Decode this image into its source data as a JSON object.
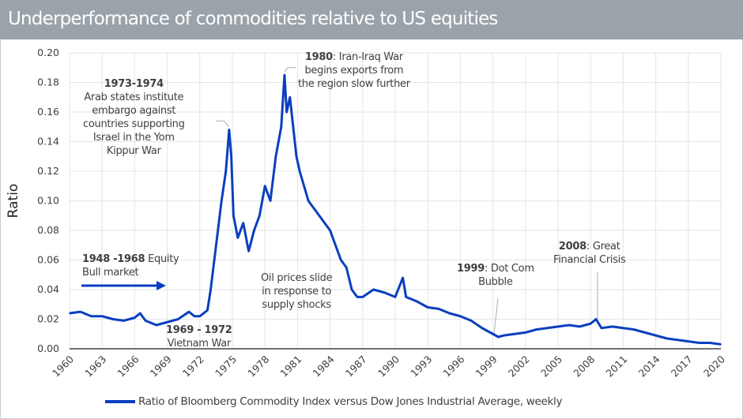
{
  "header": {
    "title": "Underperformance of commodities relative to US equities"
  },
  "chart_data": {
    "type": "line",
    "title": "Underperformance of commodities relative to US equities",
    "xlabel": "",
    "ylabel": "Ratio",
    "xlim": [
      1960,
      2020
    ],
    "ylim": [
      0,
      0.2
    ],
    "x_ticks": [
      "1960",
      "1963",
      "1966",
      "1969",
      "1972",
      "1975",
      "1978",
      "1981",
      "1984",
      "1987",
      "1990",
      "1993",
      "1996",
      "1999",
      "2002",
      "2005",
      "2008",
      "2011",
      "2014",
      "2017",
      "2020"
    ],
    "y_ticks": [
      "0.00",
      "0.02",
      "0.04",
      "0.06",
      "0.08",
      "0.10",
      "0.12",
      "0.14",
      "0.16",
      "0.18",
      "0.20"
    ],
    "grid": true,
    "legend_placement": "bottom",
    "colors": {
      "series": "#0a3fbf",
      "grid": "#e3e5e8",
      "header": "#9aa3aa"
    },
    "series": [
      {
        "name": "Ratio of Bloomberg Commodity Index versus Dow Jones Industrial Average, weekly",
        "x": [
          1960,
          1961,
          1962,
          1963,
          1964,
          1965,
          1966,
          1966.5,
          1967,
          1968,
          1969,
          1970,
          1971,
          1971.5,
          1972,
          1972.7,
          1973,
          1973.5,
          1974,
          1974.4,
          1974.7,
          1974.9,
          1975.1,
          1975.5,
          1976,
          1976.5,
          1977,
          1977.5,
          1978,
          1978.5,
          1979,
          1979.5,
          1979.8,
          1980,
          1980.3,
          1980.6,
          1980.9,
          1981.2,
          1981.6,
          1982,
          1982.5,
          1983,
          1983.5,
          1984,
          1984.5,
          1985,
          1985.5,
          1986,
          1986.5,
          1987,
          1988,
          1989,
          1990,
          1990.7,
          1991,
          1992,
          1993,
          1994,
          1995,
          1996,
          1997,
          1998,
          1999,
          1999.5,
          2000,
          2001,
          2002,
          2003,
          2004,
          2005,
          2006,
          2007,
          2008,
          2008.5,
          2009,
          2010,
          2011,
          2012,
          2013,
          2014,
          2015,
          2016,
          2017,
          2018,
          2019,
          2020
        ],
        "values": [
          0.024,
          0.025,
          0.022,
          0.022,
          0.02,
          0.019,
          0.021,
          0.024,
          0.019,
          0.016,
          0.018,
          0.02,
          0.025,
          0.022,
          0.022,
          0.026,
          0.04,
          0.07,
          0.1,
          0.12,
          0.148,
          0.13,
          0.09,
          0.075,
          0.085,
          0.066,
          0.08,
          0.09,
          0.11,
          0.1,
          0.13,
          0.15,
          0.185,
          0.16,
          0.17,
          0.15,
          0.13,
          0.12,
          0.11,
          0.1,
          0.095,
          0.09,
          0.085,
          0.08,
          0.07,
          0.06,
          0.055,
          0.04,
          0.035,
          0.035,
          0.04,
          0.038,
          0.035,
          0.048,
          0.035,
          0.032,
          0.028,
          0.027,
          0.024,
          0.022,
          0.019,
          0.014,
          0.01,
          0.008,
          0.009,
          0.01,
          0.011,
          0.013,
          0.014,
          0.015,
          0.016,
          0.015,
          0.017,
          0.02,
          0.014,
          0.015,
          0.014,
          0.013,
          0.011,
          0.009,
          0.007,
          0.006,
          0.005,
          0.004,
          0.004,
          0.003
        ]
      }
    ],
    "annotations": [
      {
        "bold": "1973-1974",
        "lines": [
          "Arab states institute",
          "embargo against",
          "countries supporting",
          "Israel in the Yom",
          "Kippur War"
        ]
      },
      {
        "bold": "1980",
        "text": ": Iran-Iraq War",
        "lines": [
          "begins exports from",
          "the region slow further"
        ]
      },
      {
        "bold": "1948 -1968",
        "text": " Equity",
        "lines": [
          "Bull market"
        ]
      },
      {
        "bold": "1969 - 1972",
        "lines": [
          "Vietnam War"
        ]
      },
      {
        "lines": [
          "Oil prices slide",
          "in response to",
          "supply shocks"
        ]
      },
      {
        "bold": "1999",
        "text": ": Dot Com",
        "lines": [
          "Bubble"
        ]
      },
      {
        "bold": "2008",
        "text": ": Great",
        "lines": [
          "Financial Crisis"
        ]
      }
    ]
  }
}
